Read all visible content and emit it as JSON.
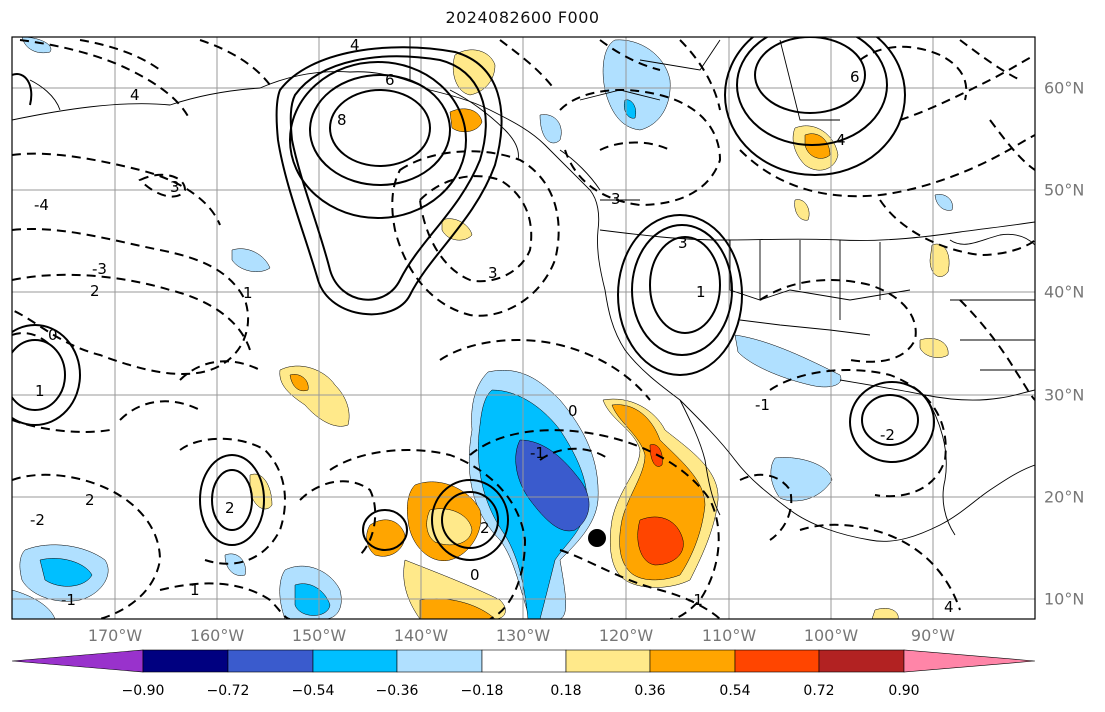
{
  "title": "2024082600 F000",
  "lon_labels": [
    "170°W",
    "160°W",
    "150°W",
    "140°W",
    "130°W",
    "120°W",
    "110°W",
    "100°W",
    "90°W"
  ],
  "lat_labels": [
    "60°N",
    "50°N",
    "40°N",
    "30°N",
    "20°N",
    "10°N"
  ],
  "colorbar": {
    "colors": [
      "#9932cc",
      "#000080",
      "#3a5bcd",
      "#00bfff",
      "#b0e0ff",
      "#ffffff",
      "#ffe98a",
      "#ffa500",
      "#ff4500",
      "#b22222",
      "#ff85a8"
    ],
    "ticks": [
      "−0.90",
      "−0.72",
      "−0.54",
      "−0.36",
      "−0.18",
      "0.18",
      "0.36",
      "0.54",
      "0.72",
      "0.90"
    ]
  },
  "contour_labels": [
    "4",
    "6",
    "8",
    "6",
    "4",
    "3",
    "3",
    "2",
    "1",
    "0",
    "-1",
    "-2",
    "-3",
    "-4",
    "1",
    "2",
    "3",
    "4",
    "0",
    "-1",
    "1",
    "2",
    "-1",
    "-2",
    "0",
    "1",
    "2",
    "3",
    "4",
    "-1"
  ],
  "colors": {
    "coast": "#000000",
    "grid": "#999999",
    "contour": "#000000",
    "marker": "#000000"
  }
}
